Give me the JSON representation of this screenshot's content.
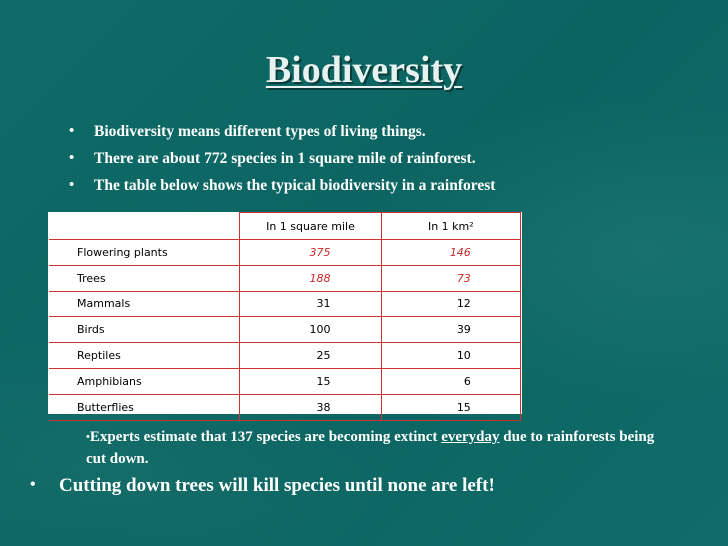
{
  "title": "Biodiversity",
  "bullets": [
    "Biodiversity means different types of living things.",
    "There are about 772 species in 1 square mile of rainforest.",
    "The table below shows the typical biodiversity in a rainforest"
  ],
  "table": {
    "headers": [
      "",
      "In 1 square mile",
      "In 1 km²"
    ],
    "rows": [
      {
        "label": "Flowering plants",
        "mile": "375",
        "km": "146"
      },
      {
        "label": "Trees",
        "mile": "188",
        "km": "73"
      },
      {
        "label": "Mammals",
        "mile": "31",
        "km": "12"
      },
      {
        "label": "Birds",
        "mile": "100",
        "km": "39"
      },
      {
        "label": "Reptiles",
        "mile": "25",
        "km": "10"
      },
      {
        "label": "Amphibians",
        "mile": "15",
        "km": "6"
      },
      {
        "label": "Butterflies",
        "mile": "38",
        "km": "15"
      }
    ]
  },
  "extinct": {
    "before": "Experts estimate that 137 species are becoming extinct ",
    "emphasis": "everyday",
    "after": " due to rainforests being cut down."
  },
  "final": "Cutting down trees will kill species until none are left!",
  "colors": {
    "background": "#0f6a66",
    "highlight_red": "#c8282a",
    "table_border": "#cc3333"
  }
}
